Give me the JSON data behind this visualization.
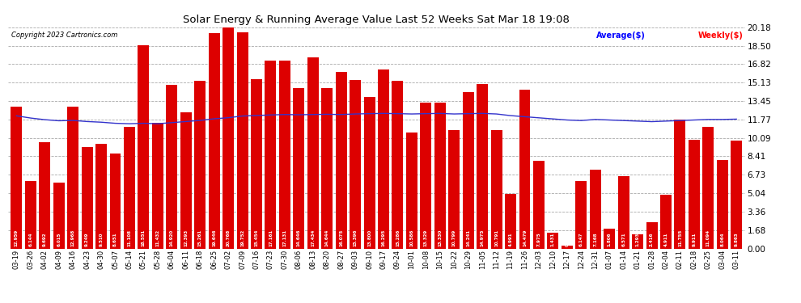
{
  "title": "Solar Energy & Running Average Value Last 52 Weeks Sat Mar 18 19:08",
  "copyright": "Copyright 2023 Cartronics.com",
  "yticks": [
    0.0,
    1.68,
    3.36,
    5.04,
    6.73,
    8.41,
    10.09,
    11.77,
    13.45,
    15.13,
    16.82,
    18.5,
    20.18
  ],
  "bar_color": "#dd0000",
  "avg_color": "#3333cc",
  "background_color": "#ffffff",
  "grid_color": "#aaaaaa",
  "dates": [
    "03-19",
    "03-26",
    "04-02",
    "04-09",
    "04-16",
    "04-23",
    "04-30",
    "05-07",
    "05-14",
    "05-21",
    "05-28",
    "06-04",
    "06-11",
    "06-18",
    "06-25",
    "07-02",
    "07-09",
    "07-16",
    "07-23",
    "07-30",
    "08-06",
    "08-13",
    "08-20",
    "08-27",
    "09-03",
    "09-10",
    "09-17",
    "09-24",
    "10-01",
    "10-08",
    "10-15",
    "10-22",
    "10-29",
    "11-05",
    "11-12",
    "11-19",
    "11-26",
    "12-03",
    "12-10",
    "12-17",
    "12-24",
    "12-31",
    "01-07",
    "01-14",
    "01-21",
    "01-28",
    "02-04",
    "02-11",
    "02-18",
    "02-25",
    "03-04",
    "03-11"
  ],
  "weekly_values": [
    12.959,
    6.144,
    9.692,
    6.015,
    12.968,
    9.249,
    9.51,
    8.651,
    11.108,
    18.551,
    11.432,
    14.92,
    12.393,
    15.261,
    19.646,
    20.768,
    19.752,
    15.454,
    17.161,
    17.131,
    14.646,
    17.434,
    14.644,
    16.075,
    15.396,
    13.8,
    16.295,
    15.286,
    10.586,
    13.329,
    13.33,
    10.799,
    14.241,
    14.975,
    10.791,
    4.991,
    14.479,
    7.975,
    1.431,
    0.243,
    6.147,
    7.168,
    1.806,
    6.571,
    1.293,
    2.416,
    4.911,
    11.755,
    9.911,
    11.094,
    8.064,
    9.863
  ],
  "avg_values": [
    12.1,
    11.9,
    11.75,
    11.65,
    11.68,
    11.58,
    11.52,
    11.42,
    11.38,
    11.42,
    11.38,
    11.48,
    11.58,
    11.68,
    11.83,
    11.93,
    12.08,
    12.13,
    12.18,
    12.22,
    12.2,
    12.22,
    12.24,
    12.22,
    12.27,
    12.3,
    12.32,
    12.3,
    12.27,
    12.3,
    12.32,
    12.27,
    12.3,
    12.32,
    12.27,
    12.12,
    12.02,
    11.92,
    11.82,
    11.72,
    11.67,
    11.77,
    11.72,
    11.67,
    11.62,
    11.57,
    11.62,
    11.67,
    11.72,
    11.77,
    11.77,
    11.8
  ]
}
